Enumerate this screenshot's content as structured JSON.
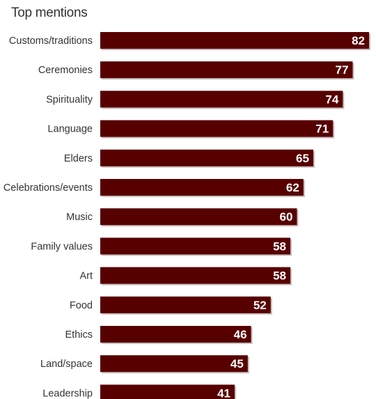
{
  "chart_data": {
    "type": "bar",
    "orientation": "horizontal",
    "title": "Top mentions",
    "xlabel": "",
    "ylabel": "",
    "categories": [
      "Customs/traditions",
      "Ceremonies",
      "Spirituality",
      "Language",
      "Elders",
      "Celebrations/events",
      "Music",
      "Family values",
      "Art",
      "Food",
      "Ethics",
      "Land/space",
      "Leadership"
    ],
    "values": [
      82,
      77,
      74,
      71,
      65,
      62,
      60,
      58,
      58,
      52,
      46,
      45,
      41
    ],
    "xlim": [
      0,
      82
    ],
    "grid": false,
    "legend": "none",
    "bar_color": "#570000",
    "bar_shadow_color": "#c8bcbc"
  }
}
